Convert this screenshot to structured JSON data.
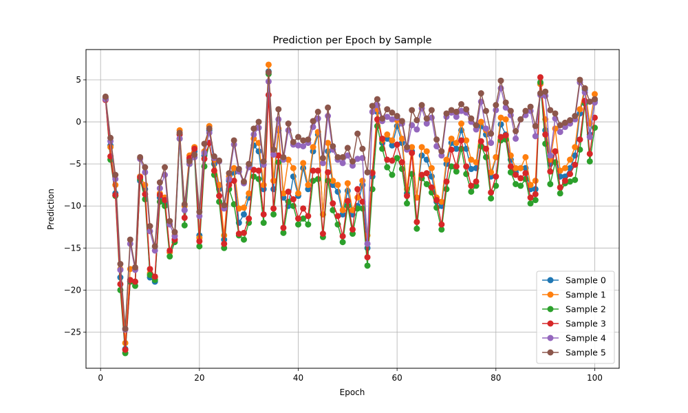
{
  "chart_data": {
    "type": "line",
    "title": "Prediction per Epoch by Sample",
    "xlabel": "Epoch",
    "ylabel": "Prediction",
    "xlim": [
      -2.95,
      104.95
    ],
    "ylim": [
      -29.3,
      8.6
    ],
    "xticks": [
      0,
      20,
      40,
      60,
      80,
      100
    ],
    "yticks": [
      5,
      0,
      -5,
      -10,
      -15,
      -20,
      -25
    ],
    "grid": true,
    "legend_position": "lower-right",
    "marker": "circle",
    "x": [
      1,
      2,
      3,
      4,
      5,
      6,
      7,
      8,
      9,
      10,
      11,
      12,
      13,
      14,
      15,
      16,
      17,
      18,
      19,
      20,
      21,
      22,
      23,
      24,
      25,
      26,
      27,
      28,
      29,
      30,
      31,
      32,
      33,
      34,
      35,
      36,
      37,
      38,
      39,
      40,
      41,
      42,
      43,
      44,
      45,
      46,
      47,
      48,
      49,
      50,
      51,
      52,
      53,
      54,
      55,
      56,
      57,
      58,
      59,
      60,
      61,
      62,
      63,
      64,
      65,
      66,
      67,
      68,
      69,
      70,
      71,
      72,
      73,
      74,
      75,
      76,
      77,
      78,
      79,
      80,
      81,
      82,
      83,
      84,
      85,
      86,
      87,
      88,
      89,
      90,
      91,
      92,
      93,
      94,
      95,
      96,
      97,
      98,
      99,
      100
    ],
    "series": [
      {
        "name": "Sample 0",
        "color": "#1f77b4",
        "values": [
          2.8,
          -2.8,
          -8.5,
          -18.5,
          -27,
          -19,
          -19,
          -7,
          -8,
          -18.5,
          -19,
          -9,
          -9.5,
          -15.5,
          -14,
          -1.5,
          -10.5,
          -4.5,
          -3.5,
          -13.5,
          -4,
          -1,
          -5,
          -8,
          -14,
          -7,
          -6,
          -12,
          -11,
          -9,
          -2.8,
          -3.5,
          -8,
          6,
          -8,
          -1,
          -9,
          -10,
          -6.5,
          -8.8,
          -5.5,
          -8,
          -3.5,
          -1.5,
          -11,
          -3.5,
          -7.5,
          -8.3,
          -11,
          -8.2,
          -11,
          -10,
          -7.5,
          -15,
          -6.5,
          1.2,
          -2.5,
          -2,
          -2.8,
          -0.5,
          -2.5,
          -8.5,
          -3.5,
          -9,
          -4,
          -4.5,
          -6.5,
          -9.5,
          -10,
          -5,
          -2.5,
          -3.2,
          -1,
          -3.2,
          -5.6,
          -5.5,
          -0.5,
          -1.5,
          -6.5,
          -4.2,
          -0.3,
          -1.5,
          -4.5,
          -6,
          -5.5,
          -5.5,
          -8,
          -8,
          4.5,
          -1,
          -5,
          -3.5,
          -6.5,
          -6.5,
          -5.5,
          -4,
          1,
          3.8,
          -1.5,
          2.5
        ]
      },
      {
        "name": "Sample 1",
        "color": "#ff7f0e",
        "values": [
          2.9,
          -3,
          -7.5,
          -17.5,
          -26.3,
          -17.5,
          -17.5,
          -6.5,
          -7.5,
          -18,
          -18.5,
          -8.5,
          -9,
          -15.5,
          -13.5,
          -1,
          -10,
          -4,
          -3,
          -13.8,
          -3.5,
          -0.5,
          -4.5,
          -7.5,
          -13.5,
          -6.5,
          -5.5,
          -10.3,
          -10.2,
          -8.5,
          -2,
          -2.5,
          -7.5,
          6.8,
          -7,
          -0.8,
          -8.5,
          -4.5,
          -5.5,
          -8.5,
          -4.9,
          -7.5,
          -3,
          -1.2,
          -11,
          -2.5,
          -7,
          -7.5,
          -10.5,
          -7.3,
          -10.5,
          -9,
          -7,
          -13.5,
          -6,
          1.5,
          -2.2,
          -1.5,
          -2.2,
          0.2,
          -2,
          -8,
          -3,
          -9,
          -3,
          -3.5,
          -5.5,
          -9,
          -9.5,
          -4.5,
          -2,
          -2.5,
          -0.2,
          -2.2,
          -4.5,
          -4.8,
          0,
          -1,
          -6,
          -4.2,
          0.5,
          0.3,
          -4,
          -5.5,
          -5.5,
          -4.2,
          -7.5,
          -7,
          4.5,
          0.3,
          -4.5,
          -0.8,
          -5.8,
          -5.5,
          -4.5,
          -3,
          1.5,
          4,
          -0.2,
          3.3
        ]
      },
      {
        "name": "Sample 2",
        "color": "#2ca02c",
        "values": [
          2.7,
          -4.5,
          -8.8,
          -20,
          -27.5,
          -19,
          -19.5,
          -6.8,
          -9.2,
          -18.2,
          -18.8,
          -9.5,
          -10,
          -16,
          -14.3,
          -2,
          -12.3,
          -5,
          -4.2,
          -14.8,
          -5.3,
          -2.5,
          -6.3,
          -9.5,
          -15,
          -8,
          -9.8,
          -13.5,
          -14,
          -12,
          -6.5,
          -6.8,
          -12,
          5.7,
          -11,
          -4.8,
          -13.2,
          -9.5,
          -10,
          -12.2,
          -11.5,
          -12.2,
          -7,
          -6.8,
          -13.7,
          -7,
          -10.5,
          -12.2,
          -14.3,
          -10,
          -13.3,
          -10.3,
          -10.3,
          -17.1,
          -8,
          -0.5,
          -3.2,
          -5.4,
          -6.3,
          -4.3,
          -5.6,
          -9.7,
          -6.2,
          -12.7,
          -6.7,
          -7.4,
          -8.4,
          -10.2,
          -12.8,
          -8,
          -5.3,
          -5.9,
          -3.2,
          -6.2,
          -8.3,
          -7.6,
          -2.9,
          -4.2,
          -9.1,
          -7.6,
          -2.2,
          -2.1,
          -6,
          -7.4,
          -7.6,
          -6.8,
          -9.7,
          -9.3,
          4.7,
          -2.6,
          -7.4,
          -4.8,
          -8.5,
          -7.3,
          -7.1,
          -6.9,
          -3.3,
          2.2,
          -4.7,
          -0.7
        ]
      },
      {
        "name": "Sample 3",
        "color": "#d62728",
        "values": [
          2.6,
          -4.1,
          -8.7,
          -19.3,
          -27.1,
          -18.8,
          -19,
          -6.6,
          -8.6,
          -17.5,
          -18.4,
          -8.7,
          -9.3,
          -15.3,
          -14,
          -1.5,
          -11.4,
          -4.3,
          -3.2,
          -14.2,
          -4.4,
          -2.5,
          -5.8,
          -8.8,
          -14.5,
          -7.5,
          -7,
          -13.3,
          -13.2,
          -11.5,
          -5.7,
          -5.8,
          -11,
          3.2,
          -10.3,
          -4,
          -12.6,
          -8.3,
          -9.2,
          -11.5,
          -10.3,
          -11.2,
          -5.8,
          -5.8,
          -13.3,
          -6,
          -9.7,
          -11.2,
          -13.6,
          -9.4,
          -12.8,
          -8,
          -9.5,
          -16.1,
          -6.1,
          0.3,
          -2,
          -4.5,
          -4.6,
          -2.7,
          -4.8,
          -8.8,
          -3.7,
          -11.9,
          -6.3,
          -6.1,
          -7.8,
          -9.3,
          -12.2,
          -7.1,
          -3.3,
          -5.3,
          -2.2,
          -5.3,
          -7.6,
          -7.1,
          -2.3,
          -3.2,
          -8.4,
          -6.5,
          -1.8,
          -1.6,
          -5.3,
          -6.3,
          -6.7,
          -6.1,
          -9,
          -8.6,
          5.3,
          -1.5,
          -5.9,
          -3.5,
          -7.8,
          -7,
          -6.2,
          -5.1,
          -2.1,
          2.5,
          -3.8,
          0.5
        ]
      },
      {
        "name": "Sample 4",
        "color": "#9467bd",
        "values": [
          2.7,
          -2.3,
          -6.8,
          -17.6,
          -24.7,
          -14.5,
          -17.6,
          -4.4,
          -6,
          -13,
          -15.3,
          -7.9,
          -6.3,
          -12.2,
          -13.6,
          -2,
          -10.5,
          -5,
          -4.2,
          -11.2,
          -3.7,
          -1.3,
          -4.3,
          -4.7,
          -10.3,
          -6.8,
          -2.7,
          -5.9,
          -7.3,
          -5.4,
          -1.5,
          -0.7,
          -5.1,
          4.8,
          -3.9,
          0.3,
          -4.5,
          -1,
          -2.7,
          -2.8,
          -2.9,
          -2.5,
          -0.6,
          0.4,
          -4.9,
          0.7,
          -3.3,
          -4.5,
          -4.9,
          -4,
          -5.2,
          -4.4,
          -4.3,
          -14.5,
          1.2,
          2,
          0.1,
          0.6,
          0.3,
          0.5,
          -0.2,
          -3.3,
          -0.4,
          -0.9,
          1.6,
          -0.2,
          0.5,
          -2.9,
          -4,
          0.6,
          1.1,
          0.6,
          1.3,
          1.1,
          0,
          -0.9,
          2.4,
          -0.8,
          -2.5,
          1.4,
          4,
          1.7,
          0.8,
          -2,
          0.3,
          0.8,
          1.3,
          -1.7,
          3.2,
          3.1,
          -4,
          0.4,
          -1.2,
          -0.6,
          -0.2,
          0.3,
          4.7,
          3.5,
          -1.8,
          2.3
        ]
      },
      {
        "name": "Sample 5",
        "color": "#8c564b",
        "values": [
          3,
          -1.9,
          -6.3,
          -16.9,
          -24.6,
          -14,
          -17.3,
          -4.2,
          -5.4,
          -12.4,
          -14.8,
          -7.2,
          -5.4,
          -11.8,
          -13.1,
          -1.3,
          -9.8,
          -4.7,
          -3.9,
          -10.7,
          -2.6,
          -0.8,
          -4.1,
          -4.6,
          -9.9,
          -6.1,
          -2.2,
          -5.6,
          -7.1,
          -5,
          -0.8,
          0,
          -4.7,
          5.9,
          -3.3,
          1.5,
          -4.2,
          -0.2,
          -2.4,
          -1.8,
          -2.2,
          -2.1,
          0.1,
          1.2,
          -4.3,
          1.7,
          -2.9,
          -4.2,
          -4.2,
          -3.1,
          -4.7,
          -1.4,
          -3.2,
          -6,
          1.9,
          2.7,
          0.4,
          1.5,
          1.1,
          0.7,
          0.1,
          -3,
          1.4,
          0.2,
          2,
          0.4,
          1.4,
          -2.1,
          -3.5,
          1,
          1.4,
          1.2,
          2.1,
          1.5,
          0.4,
          -0.4,
          3.4,
          1.3,
          -1.4,
          2,
          4.9,
          2.3,
          1.3,
          -1.1,
          0.3,
          1.3,
          1.8,
          -0.5,
          3.4,
          3.6,
          1.4,
          1,
          -0.4,
          -0.1,
          0.2,
          0.7,
          5,
          4,
          2.4,
          2.7
        ]
      }
    ]
  }
}
